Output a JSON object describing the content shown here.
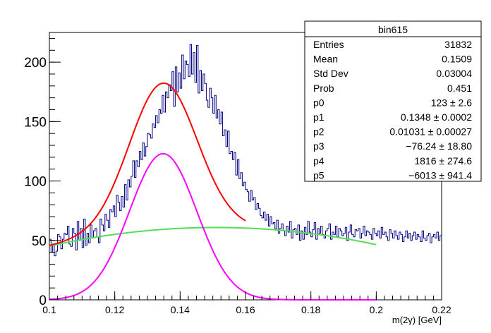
{
  "chart_data": {
    "type": "histogram",
    "xlabel": "m(2γ) [GeV]",
    "xlim": [
      0.1,
      0.22
    ],
    "ylim": [
      0,
      225
    ],
    "x_ticks": [
      "0.1",
      "0.12",
      "0.14",
      "0.16",
      "0.18",
      "0.2",
      "0.22"
    ],
    "x_tick_values": [
      0.1,
      0.12,
      0.14,
      0.16,
      0.18,
      0.2,
      0.22
    ],
    "y_ticks": [
      "0",
      "50",
      "100",
      "150",
      "200"
    ],
    "y_tick_values": [
      0,
      50,
      100,
      150,
      200
    ],
    "grid": false,
    "legend": "none",
    "colors": {
      "histogram": "#000080",
      "total_fit": "#ff0000",
      "signal": "#ff00ff",
      "background": "#55dd55"
    },
    "stats_box": {
      "title": "bin615",
      "rows": [
        {
          "label": "Entries",
          "value": "31832"
        },
        {
          "label": "Mean",
          "value": "0.1509"
        },
        {
          "label": "Std Dev",
          "value": "0.03004"
        },
        {
          "label": "Prob",
          "value": "0.451"
        },
        {
          "label": "p0",
          "value": "123 ± 2.6"
        },
        {
          "label": "p1",
          "value": "0.1348 ± 0.0002"
        },
        {
          "label": "p2",
          "value": "0.01031 ± 0.00027"
        },
        {
          "label": "p3",
          "value": "−76.24 ± 18.80"
        },
        {
          "label": "p4",
          "value": "1816 ± 274.6"
        },
        {
          "label": "p5",
          "value": "−6013 ± 941.4"
        }
      ]
    },
    "histogram": {
      "bin_width": 0.0005,
      "x_start": 0.1,
      "values": [
        51,
        40,
        47,
        37,
        41,
        55,
        53,
        43,
        51,
        56,
        55,
        62,
        47,
        45,
        60,
        56,
        42,
        66,
        50,
        60,
        44,
        68,
        46,
        56,
        48,
        63,
        52,
        58,
        60,
        53,
        48,
        68,
        63,
        58,
        72,
        67,
        61,
        76,
        74,
        79,
        70,
        88,
        82,
        75,
        87,
        78,
        97,
        84,
        101,
        95,
        104,
        117,
        103,
        117,
        112,
        125,
        118,
        132,
        121,
        129,
        140,
        139,
        136,
        148,
        145,
        155,
        149,
        160,
        157,
        172,
        158,
        175,
        170,
        181,
        176,
        192,
        163,
        196,
        175,
        191,
        178,
        206,
        186,
        201,
        198,
        188,
        215,
        190,
        208,
        183,
        214,
        174,
        193,
        176,
        190,
        182,
        168,
        162,
        178,
        170,
        157,
        172,
        153,
        160,
        148,
        158,
        138,
        143,
        129,
        142,
        123,
        125,
        118,
        124,
        105,
        118,
        102,
        107,
        96,
        99,
        93,
        91,
        83,
        92,
        84,
        86,
        76,
        81,
        77,
        71,
        69,
        74,
        67,
        72,
        62,
        70,
        64,
        65,
        60,
        67,
        56,
        60,
        64,
        58,
        54,
        62,
        57,
        66,
        52,
        59,
        60,
        55,
        63,
        50,
        58,
        51,
        61,
        55,
        66,
        57,
        53,
        59,
        65,
        51,
        60,
        56,
        62,
        55,
        52,
        58,
        60,
        64,
        51,
        57,
        55,
        62,
        53,
        60,
        58,
        54,
        56,
        61,
        50,
        57,
        63,
        55,
        53,
        59,
        58,
        60,
        52,
        56,
        62,
        54,
        58,
        57,
        55,
        51,
        60,
        56,
        54,
        58,
        52,
        61,
        55,
        57,
        53,
        50,
        59,
        56,
        52,
        58,
        54,
        51,
        57,
        55,
        49,
        53,
        58,
        52,
        56,
        50,
        54,
        57,
        51,
        55,
        53,
        49,
        58,
        52,
        50,
        54,
        56,
        48,
        53,
        55,
        52,
        57,
        50,
        54
      ],
      "note": "approximate bin contents read off the plot"
    },
    "fits": {
      "gaussian": {
        "p0": 123,
        "p1": 0.1348,
        "p2": 0.01031
      },
      "background_poly": {
        "p3": -76.24,
        "p4": 1816,
        "p5": -6013
      },
      "fit_range": [
        0.1,
        0.2
      ]
    }
  }
}
